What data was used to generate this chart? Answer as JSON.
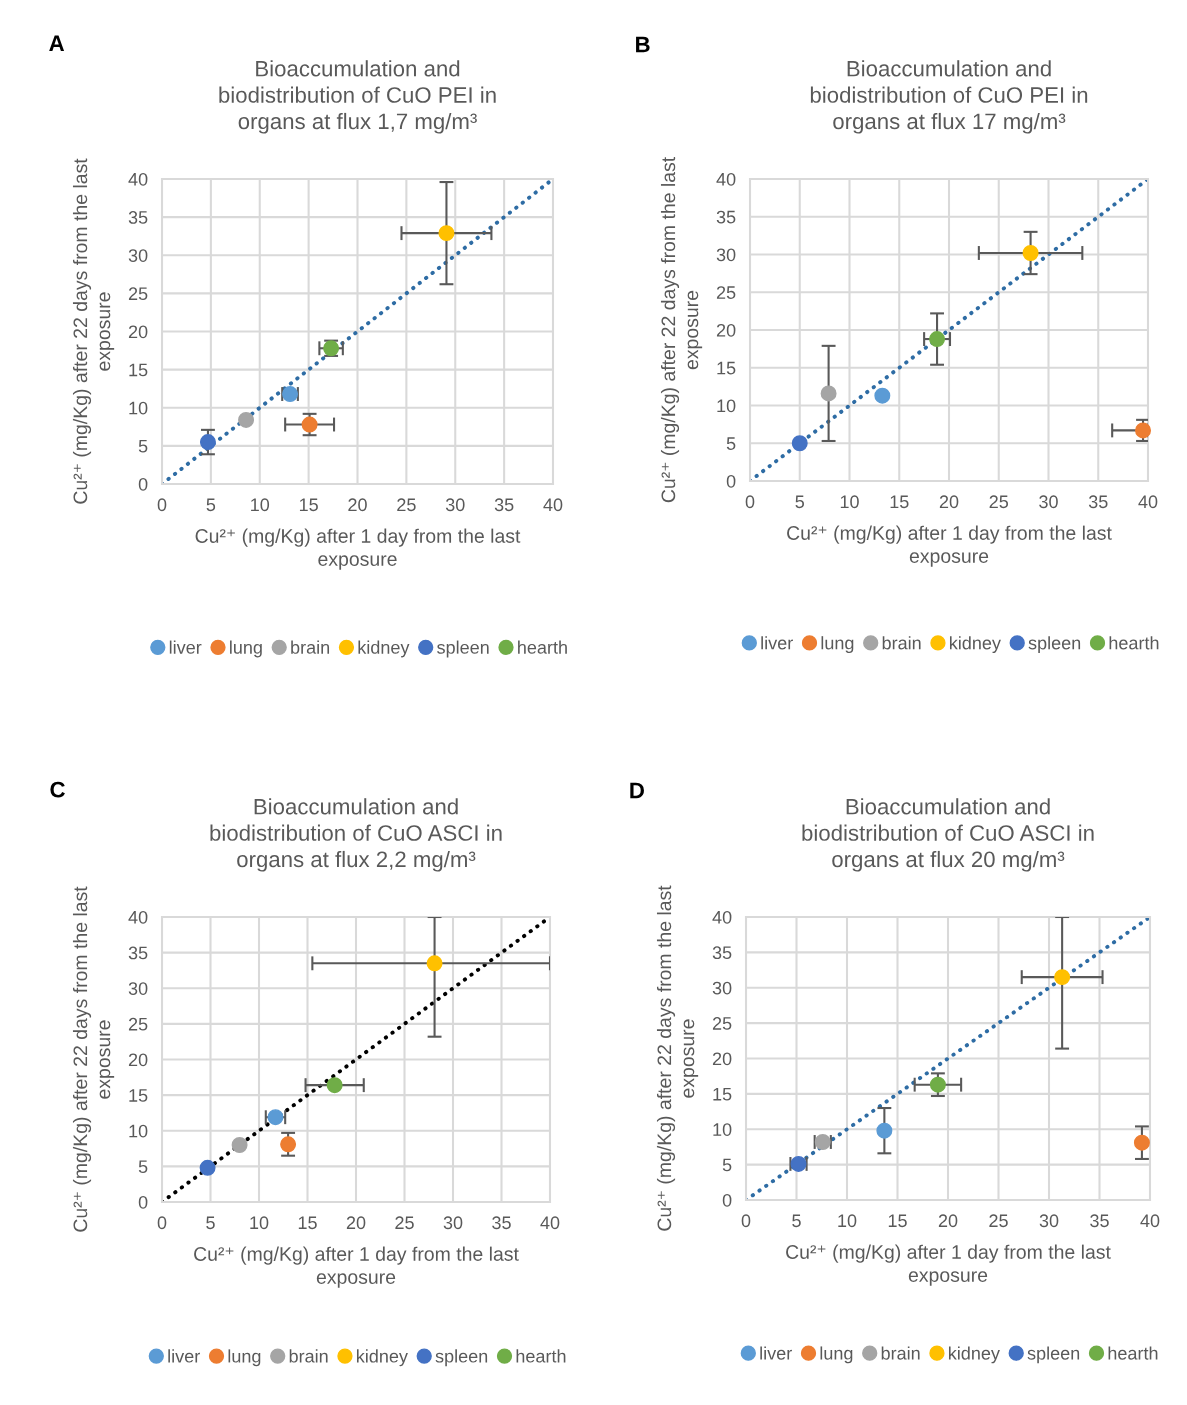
{
  "chart_data": [
    {
      "type": "scatter",
      "title": "Bioaccumulation and biodistribution of CuO PEI in organs at flux 1,7 mg/m³",
      "xlabel": "Cu²⁺ (mg/Kg) after 1 day from the last exposure",
      "ylabel": "Cu²⁺ (mg/Kg) after 22 days from the last exposure",
      "annotations": [
        "A"
      ],
      "xlim": [
        0,
        40
      ],
      "ylim": [
        0,
        40
      ],
      "xticks": [
        0,
        5,
        10,
        15,
        20,
        25,
        30,
        35,
        40
      ],
      "yticks": [
        0,
        5,
        10,
        15,
        20,
        25,
        30,
        35,
        40
      ],
      "grid": true,
      "legend": "bottom",
      "marker": "circle",
      "series": [
        {
          "name": "liver",
          "color": "#5b9bd5",
          "x": [
            13.1
          ],
          "values": [
            11.8
          ],
          "xerrors": [
            0.8
          ],
          "errors": [
            null
          ]
        },
        {
          "name": "lung",
          "color": "#ed7d31",
          "x": [
            15.1
          ],
          "values": [
            7.8
          ],
          "xerrors": [
            2.5
          ],
          "errors": [
            1.4
          ]
        },
        {
          "name": "brain",
          "color": "#a5a5a5",
          "x": [
            8.6
          ],
          "values": [
            8.4
          ],
          "xerrors": [
            null
          ],
          "errors": [
            null
          ]
        },
        {
          "name": "kidney",
          "color": "#ffc000",
          "x": [
            29.1
          ],
          "values": [
            32.9
          ],
          "xerrors": [
            4.6
          ],
          "errors": [
            6.7
          ]
        },
        {
          "name": "spleen",
          "color": "#4472c4",
          "x": [
            4.7
          ],
          "values": [
            5.5
          ],
          "xerrors": [
            null
          ],
          "errors": [
            1.6
          ]
        },
        {
          "name": "hearth",
          "color": "#70ad47",
          "x": [
            17.3
          ],
          "values": [
            17.8
          ],
          "xerrors": [
            1.2
          ],
          "errors": [
            1.0
          ]
        },
        {
          "type": "line",
          "color": "#2e6ca4",
          "line_style": "dotted",
          "marker": "none",
          "x": [
            0,
            40
          ],
          "values": [
            0,
            40
          ]
        }
      ]
    },
    {
      "type": "scatter",
      "title": "Bioaccumulation and biodistribution of CuO PEI in organs at flux 17 mg/m³",
      "xlabel": "Cu²⁺ (mg/Kg) after 1 day from the last exposure",
      "ylabel": "Cu²⁺ (mg/Kg) after 22 days from the last exposure",
      "annotations": [
        "B"
      ],
      "xlim": [
        0,
        40
      ],
      "ylim": [
        0,
        40
      ],
      "xticks": [
        0,
        5,
        10,
        15,
        20,
        25,
        30,
        35,
        40
      ],
      "yticks": [
        0,
        5,
        10,
        15,
        20,
        25,
        30,
        35,
        40
      ],
      "grid": true,
      "legend": "bottom",
      "marker": "circle",
      "series": [
        {
          "name": "liver",
          "color": "#5b9bd5",
          "x": [
            13.3
          ],
          "values": [
            11.3
          ],
          "xerrors": [
            null
          ],
          "errors": [
            null
          ]
        },
        {
          "name": "lung",
          "color": "#ed7d31",
          "x": [
            39.5
          ],
          "values": [
            6.7
          ],
          "xerrors": [
            [
              36.4,
              40
            ]
          ],
          "errors": [
            1.4
          ]
        },
        {
          "name": "brain",
          "color": "#a5a5a5",
          "x": [
            7.9
          ],
          "values": [
            11.6
          ],
          "xerrors": [
            null
          ],
          "errors": [
            6.3
          ]
        },
        {
          "name": "kidney",
          "color": "#ffc000",
          "x": [
            28.2
          ],
          "values": [
            30.2
          ],
          "xerrors": [
            5.2
          ],
          "errors": [
            2.8
          ]
        },
        {
          "name": "spleen",
          "color": "#4472c4",
          "x": [
            5.0
          ],
          "values": [
            5.0
          ],
          "xerrors": [
            null
          ],
          "errors": [
            null
          ]
        },
        {
          "name": "hearth",
          "color": "#70ad47",
          "x": [
            18.8
          ],
          "values": [
            18.8
          ],
          "xerrors": [
            1.3
          ],
          "errors": [
            3.4
          ]
        },
        {
          "type": "line",
          "color": "#2e6ca4",
          "line_style": "dotted",
          "marker": "none",
          "x": [
            0,
            40
          ],
          "values": [
            0,
            40
          ]
        }
      ]
    },
    {
      "type": "scatter",
      "title": "Bioaccumulation and biodistribution of CuO ASCI in organs at flux 2,2 mg/m³",
      "xlabel": "Cu²⁺ (mg/Kg) after 1 day from the last exposure",
      "ylabel": "Cu²⁺ (mg/Kg) after 22 days from the last exposure",
      "annotations": [
        "C"
      ],
      "xlim": [
        0,
        40
      ],
      "ylim": [
        0,
        40
      ],
      "xticks": [
        0,
        5,
        10,
        15,
        20,
        25,
        30,
        35,
        40
      ],
      "yticks": [
        0,
        5,
        10,
        15,
        20,
        25,
        30,
        35,
        40
      ],
      "grid": true,
      "legend": "bottom",
      "marker": "circle",
      "series": [
        {
          "name": "liver",
          "color": "#5b9bd5",
          "x": [
            11.7
          ],
          "values": [
            11.9
          ],
          "xerrors": [
            1.0
          ],
          "errors": [
            null
          ]
        },
        {
          "name": "lung",
          "color": "#ed7d31",
          "x": [
            13.0
          ],
          "values": [
            8.1
          ],
          "xerrors": [
            null
          ],
          "errors": [
            1.6
          ]
        },
        {
          "name": "brain",
          "color": "#a5a5a5",
          "x": [
            8.0
          ],
          "values": [
            8.0
          ],
          "xerrors": [
            null
          ],
          "errors": [
            null
          ]
        },
        {
          "name": "kidney",
          "color": "#ffc000",
          "x": [
            28.1
          ],
          "values": [
            33.5
          ],
          "xerrors": [
            [
              15.5,
              40
            ]
          ],
          "errors": [
            [
              23.2,
              40
            ]
          ]
        },
        {
          "name": "spleen",
          "color": "#4472c4",
          "x": [
            4.7
          ],
          "values": [
            4.8
          ],
          "xerrors": [
            null
          ],
          "errors": [
            null
          ]
        },
        {
          "name": "hearth",
          "color": "#70ad47",
          "x": [
            17.8
          ],
          "values": [
            16.4
          ],
          "xerrors": [
            3.0
          ],
          "errors": [
            null
          ]
        },
        {
          "type": "line",
          "color": "#000000",
          "line_style": "dotted",
          "marker": "none",
          "x": [
            0,
            40
          ],
          "values": [
            0,
            40
          ]
        }
      ]
    },
    {
      "type": "scatter",
      "title": "Bioaccumulation and biodistribution of CuO ASCI in organs at flux 20 mg/m³",
      "xlabel": "Cu²⁺ (mg/Kg) after 1 day from the last exposure",
      "ylabel": "Cu²⁺ (mg/Kg) after 22 days from the last exposure",
      "annotations": [
        "D"
      ],
      "xlim": [
        0,
        40
      ],
      "ylim": [
        0,
        40
      ],
      "xticks": [
        0,
        5,
        10,
        15,
        20,
        25,
        30,
        35,
        40
      ],
      "yticks": [
        0,
        5,
        10,
        15,
        20,
        25,
        30,
        35,
        40
      ],
      "grid": true,
      "legend": "bottom",
      "marker": "circle",
      "series": [
        {
          "name": "liver",
          "color": "#5b9bd5",
          "x": [
            13.7
          ],
          "values": [
            9.8
          ],
          "xerrors": [
            null
          ],
          "errors": [
            3.2
          ]
        },
        {
          "name": "lung",
          "color": "#ed7d31",
          "x": [
            39.2
          ],
          "values": [
            8.1
          ],
          "xerrors": [
            null
          ],
          "errors": [
            2.3
          ]
        },
        {
          "name": "brain",
          "color": "#a5a5a5",
          "x": [
            7.6
          ],
          "values": [
            8.2
          ],
          "xerrors": [
            0.8
          ],
          "errors": [
            null
          ]
        },
        {
          "name": "kidney",
          "color": "#ffc000",
          "x": [
            31.3
          ],
          "values": [
            31.5
          ],
          "xerrors": [
            4.0
          ],
          "errors": [
            [
              21.4,
              40
            ]
          ]
        },
        {
          "name": "spleen",
          "color": "#4472c4",
          "x": [
            5.2
          ],
          "values": [
            5.1
          ],
          "xerrors": [
            0.8
          ],
          "errors": [
            null
          ]
        },
        {
          "name": "hearth",
          "color": "#70ad47",
          "x": [
            19.0
          ],
          "values": [
            16.3
          ],
          "xerrors": [
            2.3
          ],
          "errors": [
            1.6
          ]
        },
        {
          "type": "line",
          "color": "#2e6ca4",
          "line_style": "dotted",
          "marker": "none",
          "x": [
            0,
            40
          ],
          "values": [
            0,
            40
          ]
        }
      ]
    }
  ]
}
